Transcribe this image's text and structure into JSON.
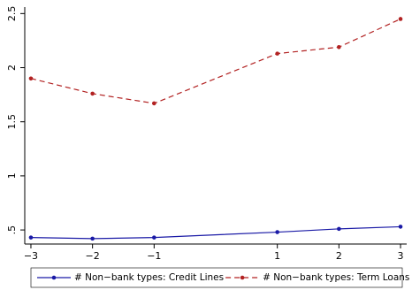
{
  "chart_data": {
    "type": "line",
    "x": [
      -3,
      -2,
      -1,
      1,
      2,
      3
    ],
    "series": [
      {
        "name": "# Non−bank types: Credit Lines",
        "color": "#1a1aa6",
        "dash": "none",
        "values": [
          0.43,
          0.42,
          0.43,
          0.48,
          0.51,
          0.53
        ]
      },
      {
        "name": "# Non−bank types: Term Loans",
        "color": "#b22222",
        "dash": "6 4",
        "values": [
          1.9,
          1.76,
          1.67,
          2.13,
          2.19,
          2.45
        ]
      }
    ],
    "xlim": [
      -3.1,
      3.1
    ],
    "xticks": [
      {
        "value": -3,
        "label": "−3"
      },
      {
        "value": -2,
        "label": "−2"
      },
      {
        "value": -1,
        "label": "−1"
      },
      1,
      2,
      3
    ],
    "ylim": [
      0.37,
      2.56
    ],
    "yticks": [
      {
        "value": 0.5,
        "label": ".5"
      },
      1,
      1.5,
      2,
      2.5
    ],
    "legend": "bottom"
  }
}
